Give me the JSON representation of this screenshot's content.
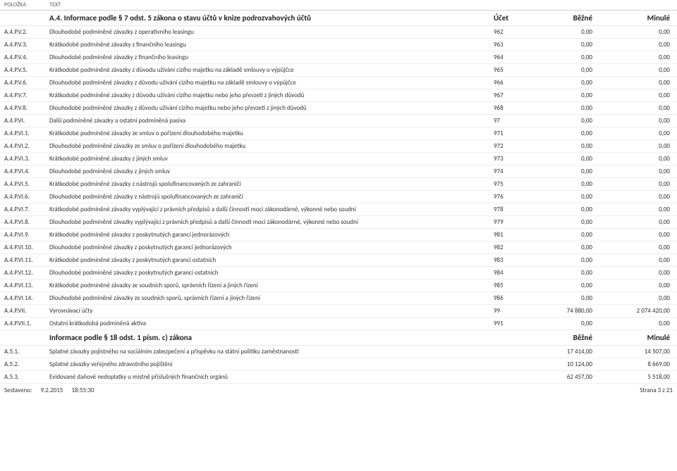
{
  "header": {
    "polozka": "POLOŽKA",
    "text": "TEXT"
  },
  "section1": {
    "polozka": "",
    "text": "A.4. Informace podle § 7 odst. 5 zákona o stavu účtů v knize podrozvahových účtů",
    "ucet_label": "Účet",
    "bezne_label": "Běžné",
    "minule_label": "Minulé",
    "rows": [
      {
        "polozka": "A.4.P.V.2.",
        "text": "Dlouhodobé podmíněné závazky z operativního leasingu",
        "ucet": "962",
        "bezne": "0,00",
        "minule": "0,00"
      },
      {
        "polozka": "A.4.P.V.3.",
        "text": "Krátkodobé podmíněné závazky z finančního leasingu",
        "ucet": "963",
        "bezne": "0,00",
        "minule": "0,00"
      },
      {
        "polozka": "A.4.P.V.4.",
        "text": "Dlouhodobé podmíněné závazky z finančního leasingu",
        "ucet": "964",
        "bezne": "0,00",
        "minule": "0,00"
      },
      {
        "polozka": "A.4.P.V.5.",
        "text": "Krátkodobé podmíněné závazky z důvodu užívání cizího majetku na základě smlouvy o výpůjčce",
        "ucet": "965",
        "bezne": "0,00",
        "minule": "0,00"
      },
      {
        "polozka": "A.4.P.V.6.",
        "text": "Dlouhodobé podmíněné závazky z důvodu užívání cizího majetku na základě smlouvy o výpůjčce",
        "ucet": "966",
        "bezne": "0,00",
        "minule": "0,00"
      },
      {
        "polozka": "A.4.P.V.7.",
        "text": "Krátkodobé podmíněné závazky z důvodu užívání cizího majetku nebo jeho převzetí z jiných důvodů",
        "ucet": "967",
        "bezne": "0,00",
        "minule": "0,00"
      },
      {
        "polozka": "A.4.P.V.8.",
        "text": "Dlouhodobé podmíněné závazky z důvodu užívání cizího majetku nebo jeho převzetí z jiných důvodů",
        "ucet": "968",
        "bezne": "0,00",
        "minule": "0,00"
      },
      {
        "polozka": "A.4.P.VI.",
        "text": "Další podmíněné závazky a ostatní podmíněná pasiva",
        "ucet": "97",
        "bezne": "0,00",
        "minule": "0,00"
      },
      {
        "polozka": "A.4.P.VI.1.",
        "text": "Krátkodobé podmíněné závazky ze smluv o pořízení dlouhodobého majetku",
        "ucet": "971",
        "bezne": "0,00",
        "minule": "0,00"
      },
      {
        "polozka": "A.4.P.VI.2.",
        "text": "Dlouhodobé podmíněné závazky ze smluv o pořízení dlouhodobého majetku",
        "ucet": "972",
        "bezne": "0,00",
        "minule": "0,00"
      },
      {
        "polozka": "A.4.P.VI.3.",
        "text": "Krátkodobé podmíněné závazky z jiných smluv",
        "ucet": "973",
        "bezne": "0,00",
        "minule": "0,00"
      },
      {
        "polozka": "A.4.P.VI.4.",
        "text": "Dlouhodobé podmíněné závazky z jiných smluv",
        "ucet": "974",
        "bezne": "0,00",
        "minule": "0,00"
      },
      {
        "polozka": "A.4.P.VI.5.",
        "text": "Krátkodobé podmíněné závazky z nástrojů spolufinancovaných ze zahraničí",
        "ucet": "975",
        "bezne": "0,00",
        "minule": "0,00"
      },
      {
        "polozka": "A.4.P.VI.6.",
        "text": "Dlouhodobé podmíněné závazky z nástrojů spolufinancovaných ze zahraničí",
        "ucet": "976",
        "bezne": "0,00",
        "minule": "0,00"
      },
      {
        "polozka": "A.4.P.VI.7.",
        "text": "Krátkodobé podmíněné závazky vyplývající z právních předpisů a další činnosti moci zákonodárné, výkonné nebo soudní",
        "ucet": "978",
        "bezne": "0,00",
        "minule": "0,00"
      },
      {
        "polozka": "A.4.P.VI.8.",
        "text": "Dlouhodobé podmíněné závazky vyplývající z právních předpisů a další činnosti moci zákonodárné, výkonné nebo soudní",
        "ucet": "979",
        "bezne": "0,00",
        "minule": "0,00"
      },
      {
        "polozka": "A.4.P.VI.9.",
        "text": "Krátkodobé podmíněné závazky z poskytnutých garancí jednorázových",
        "ucet": "981",
        "bezne": "0,00",
        "minule": "0,00"
      },
      {
        "polozka": "A.4.P.VI.10.",
        "text": "Dlouhodobé podmíněné závazky z poskytnutých garancí jednorázových",
        "ucet": "982",
        "bezne": "0,00",
        "minule": "0,00"
      },
      {
        "polozka": "A.4.P.VI.11.",
        "text": "Krátkodobé podmíněné závazky z poskytnutých garancí ostatních",
        "ucet": "983",
        "bezne": "0,00",
        "minule": "0,00"
      },
      {
        "polozka": "A.4.P.VI.12.",
        "text": "Dlouhodobé podmíněné závazky z poskytnutých garancí ostatních",
        "ucet": "984",
        "bezne": "0,00",
        "minule": "0,00"
      },
      {
        "polozka": "A.4.P.VI.13.",
        "text": "Krátkodobé podmíněné závazky ze soudních sporů, správních řízení a jiných řízení",
        "ucet": "985",
        "bezne": "0,00",
        "minule": "0,00"
      },
      {
        "polozka": "A.4.P.VI.14.",
        "text": "Dlouhodobé podmíněné závazky ze soudních sporů, správních řízení a jiných řízení",
        "ucet": "986",
        "bezne": "0,00",
        "minule": "0,00"
      },
      {
        "polozka": "A.4.P.VII.",
        "text": "Vyrovnávací účty",
        "ucet": "99",
        "bezne": "74 880,00",
        "minule": "2 074 420,00"
      },
      {
        "polozka": "A.4.P.VII.1.",
        "text": "Ostatní krátkodobá podmíněná aktiva",
        "ucet": "991",
        "bezne": "0,00",
        "minule": "0,00"
      }
    ]
  },
  "section2": {
    "polozka": "",
    "text": "Informace podle § 18 odst. 1 písm. c) zákona",
    "bezne_label": "Běžné",
    "minule_label": "Minulé",
    "rows": [
      {
        "polozka": "A.5.1.",
        "text": "Splatné závazky pojistného na sociálním zabezpečení a příspěvku na státní politiku zaměstnanosti",
        "ucet": "",
        "bezne": "17 414,00",
        "minule": "14 507,00"
      },
      {
        "polozka": "A.5.2.",
        "text": "Splatné závazky veřejného zdravotního pojištění",
        "ucet": "",
        "bezne": "10 124,00",
        "minule": "8 669,00"
      },
      {
        "polozka": "A.5.3.",
        "text": "Evidované daňové nedoplatky u místně příslušných finančních orgánů",
        "ucet": "",
        "bezne": "62 457,00",
        "minule": "5 518,00"
      }
    ]
  },
  "footer": {
    "sestaveno_label": "Sestaveno:",
    "date": "9.2.2015",
    "time": "18:55:30",
    "page": "Strana 3 z 21"
  }
}
